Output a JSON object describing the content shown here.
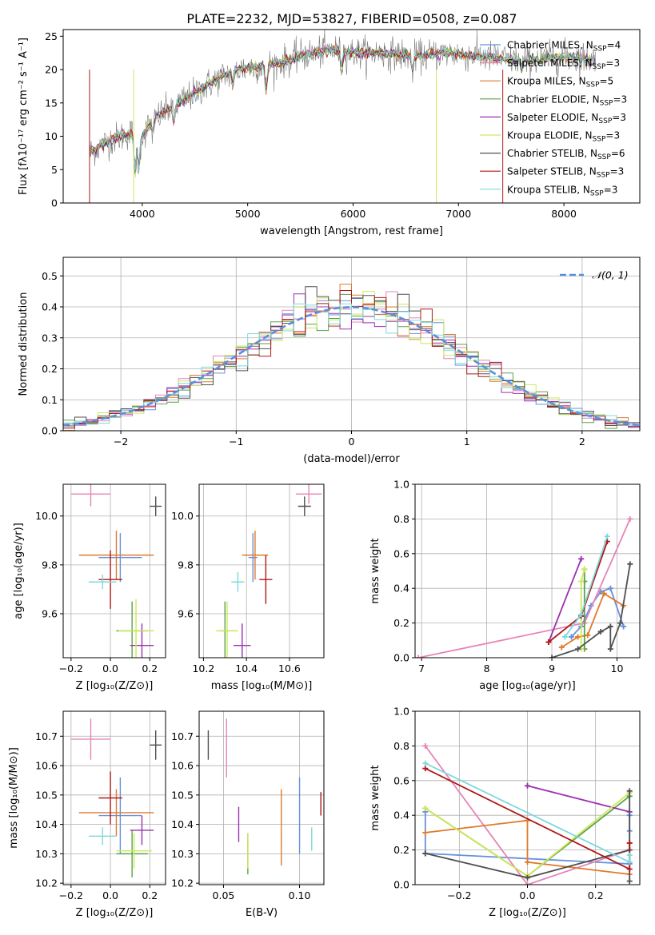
{
  "title": "PLATE=2232, MJD=53827, FIBERID=0508, z=0.087",
  "series": [
    {
      "name": "Chabrier MILES, N",
      "sub": "SSP",
      "suffix": "=4",
      "color": "#6890dc"
    },
    {
      "name": "Salpeter MILES, N",
      "sub": "SSP",
      "suffix": "=3",
      "color": "#e684b8"
    },
    {
      "name": "Kroupa MILES, N",
      "sub": "SSP",
      "suffix": "=5",
      "color": "#e07a2a"
    },
    {
      "name": "Chabrier ELODIE, N",
      "sub": "SSP",
      "suffix": "=3",
      "color": "#5aa24a"
    },
    {
      "name": "Salpeter ELODIE, N",
      "sub": "SSP",
      "suffix": "=3",
      "color": "#9b30b0"
    },
    {
      "name": "Kroupa ELODIE, N",
      "sub": "SSP",
      "suffix": "=3",
      "color": "#cde85a"
    },
    {
      "name": "Chabrier STELIB, N",
      "sub": "SSP",
      "suffix": "=6",
      "color": "#505050"
    },
    {
      "name": "Salpeter STELIB, N",
      "sub": "SSP",
      "suffix": "=3",
      "color": "#b01818"
    },
    {
      "name": "Kroupa STELIB, N",
      "sub": "SSP",
      "suffix": "=3",
      "color": "#7ed8dc"
    }
  ],
  "chart_data": [
    {
      "id": "spectrum",
      "type": "line",
      "xlabel": "wavelength [Angstrom, rest frame]",
      "ylabel": "Flux [fλ10⁻¹⁷ erg cm⁻² s⁻¹ A⁻¹]",
      "xlim": [
        3250,
        8720
      ],
      "ylim": [
        0,
        26
      ],
      "xticks": [
        4000,
        5000,
        6000,
        7000,
        8000
      ],
      "yticks": [
        0,
        5,
        10,
        15,
        20,
        25
      ],
      "grid": false,
      "legend": "right",
      "continuum": [
        [
          3500,
          7.5
        ],
        [
          3700,
          9.5
        ],
        [
          3900,
          10.5
        ],
        [
          4000,
          10
        ],
        [
          4100,
          12.5
        ],
        [
          4300,
          14.5
        ],
        [
          4500,
          16.5
        ],
        [
          4700,
          18.5
        ],
        [
          4900,
          20
        ],
        [
          5100,
          20.5
        ],
        [
          5300,
          21
        ],
        [
          5500,
          22
        ],
        [
          5800,
          23
        ],
        [
          6000,
          22.5
        ],
        [
          6300,
          22.5
        ],
        [
          6600,
          22
        ],
        [
          6900,
          22.5
        ],
        [
          7200,
          22
        ],
        [
          7500,
          21.5
        ],
        [
          7800,
          21.5
        ],
        [
          8000,
          22
        ],
        [
          8300,
          21.5
        ]
      ]
    },
    {
      "id": "residuals",
      "type": "line",
      "xlabel": "(data-model)/error",
      "ylabel": "Normed distribution",
      "xlim": [
        -2.5,
        2.5
      ],
      "ylim": [
        0,
        0.56
      ],
      "xticks": [
        -2,
        -1,
        0,
        1,
        2
      ],
      "yticks": [
        0.0,
        0.1,
        0.2,
        0.3,
        0.4,
        0.5
      ],
      "grid": true,
      "legend": "top-right",
      "reference": {
        "name": "𝒩(0, 1)",
        "mu": 0,
        "sigma": 1,
        "color": "#5a8fdc"
      }
    },
    {
      "id": "age-vs-Z",
      "type": "scatter",
      "xlabel": "Z [log₁₀(Z/Z⊙)]",
      "ylabel": "age  [log₁₀(age/yr)]",
      "xlim": [
        -0.24,
        0.28
      ],
      "ylim": [
        9.42,
        10.13
      ],
      "xticks": [
        -0.2,
        0.0,
        0.2
      ],
      "yticks": [
        9.6,
        9.8,
        10.0
      ],
      "grid": true,
      "points": [
        {
          "s": 0,
          "x": 0.05,
          "y": 9.83,
          "dx": 0.11,
          "dy": 0.1
        },
        {
          "s": 1,
          "x": -0.1,
          "y": 10.09,
          "dx": 0.1,
          "dy": 0.05
        },
        {
          "s": 2,
          "x": 0.03,
          "y": 9.84,
          "dx": 0.19,
          "dy": 0.1
        },
        {
          "s": 3,
          "x": 0.11,
          "y": 9.53,
          "dx": 0.08,
          "dy": 0.12
        },
        {
          "s": 4,
          "x": 0.16,
          "y": 9.47,
          "dx": 0.06,
          "dy": 0.09
        },
        {
          "s": 5,
          "x": 0.13,
          "y": 9.53,
          "dx": 0.09,
          "dy": 0.13
        },
        {
          "s": 6,
          "x": 0.23,
          "y": 10.04,
          "dx": 0.03,
          "dy": 0.04
        },
        {
          "s": 7,
          "x": 0.0,
          "y": 9.74,
          "dx": 0.06,
          "dy": 0.12
        },
        {
          "s": 8,
          "x": -0.04,
          "y": 9.73,
          "dx": 0.07,
          "dy": 0.03
        }
      ]
    },
    {
      "id": "age-vs-mass",
      "type": "scatter",
      "xlabel": "mass [log₁₀(M/M⊙)]",
      "ylabel": "",
      "xlim": [
        10.18,
        10.76
      ],
      "ylim": [
        9.42,
        10.13
      ],
      "xticks": [
        10.2,
        10.4,
        10.6
      ],
      "yticks": [
        9.6,
        9.8,
        10.0
      ],
      "grid": true,
      "points": [
        {
          "s": 0,
          "x": 10.43,
          "y": 9.83,
          "dx": 0.02,
          "dy": 0.1
        },
        {
          "s": 1,
          "x": 10.69,
          "y": 10.09,
          "dx": 0.06,
          "dy": 0.04
        },
        {
          "s": 2,
          "x": 10.44,
          "y": 9.84,
          "dx": 0.06,
          "dy": 0.1
        },
        {
          "s": 3,
          "x": 10.3,
          "y": 9.53,
          "dx": 0.02,
          "dy": 0.12
        },
        {
          "s": 4,
          "x": 10.38,
          "y": 9.47,
          "dx": 0.04,
          "dy": 0.09
        },
        {
          "s": 5,
          "x": 10.31,
          "y": 9.53,
          "dx": 0.05,
          "dy": 0.12
        },
        {
          "s": 6,
          "x": 10.67,
          "y": 10.04,
          "dx": 0.03,
          "dy": 0.04
        },
        {
          "s": 7,
          "x": 10.49,
          "y": 9.74,
          "dx": 0.03,
          "dy": 0.1
        },
        {
          "s": 8,
          "x": 10.36,
          "y": 9.73,
          "dx": 0.03,
          "dy": 0.04
        }
      ]
    },
    {
      "id": "weight-vs-age",
      "type": "line",
      "xlabel": "age  [log₁₀(age/yr)]",
      "ylabel": "mass weight",
      "xlim": [
        6.9,
        10.35
      ],
      "ylim": [
        0,
        1.0
      ],
      "xticks": [
        7,
        8,
        9,
        10
      ],
      "yticks": [
        0.0,
        0.2,
        0.4,
        0.6,
        0.8,
        1.0
      ],
      "grid": true,
      "lines": [
        {
          "s": 0,
          "pts": [
            [
              9.3,
              0.12
            ],
            [
              9.45,
              0.18
            ],
            [
              9.6,
              0.3
            ],
            [
              9.75,
              0.38
            ],
            [
              9.9,
              0.4
            ],
            [
              10.1,
              0.18
            ]
          ]
        },
        {
          "s": 1,
          "pts": [
            [
              6.95,
              0.0
            ],
            [
              9.5,
              0.2
            ],
            [
              10.2,
              0.8
            ]
          ]
        },
        {
          "s": 2,
          "pts": [
            [
              9.15,
              0.06
            ],
            [
              9.4,
              0.12
            ],
            [
              9.55,
              0.13
            ],
            [
              9.8,
              0.37
            ],
            [
              10.1,
              0.3
            ]
          ]
        },
        {
          "s": 3,
          "pts": [
            [
              9.5,
              0.05
            ],
            [
              9.5,
              0.44
            ],
            [
              9.5,
              0.51
            ]
          ]
        },
        {
          "s": 4,
          "pts": [
            [
              8.95,
              0.09
            ],
            [
              9.45,
              0.57
            ]
          ]
        },
        {
          "s": 5,
          "pts": [
            [
              9.45,
              0.05
            ],
            [
              9.45,
              0.44
            ],
            [
              9.5,
              0.51
            ]
          ]
        },
        {
          "s": 6,
          "pts": [
            [
              9.0,
              0.0
            ],
            [
              9.4,
              0.05
            ],
            [
              9.75,
              0.15
            ],
            [
              9.9,
              0.18
            ],
            [
              9.9,
              0.05
            ],
            [
              10.05,
              0.2
            ],
            [
              10.2,
              0.54
            ]
          ]
        },
        {
          "s": 7,
          "pts": [
            [
              8.95,
              0.09
            ],
            [
              9.45,
              0.24
            ],
            [
              9.85,
              0.67
            ]
          ]
        },
        {
          "s": 8,
          "pts": [
            [
              9.2,
              0.12
            ],
            [
              9.45,
              0.25
            ],
            [
              9.85,
              0.7
            ]
          ]
        }
      ]
    },
    {
      "id": "mass-vs-Z",
      "type": "scatter",
      "xlabel": "Z [log₁₀(Z/Z⊙)]",
      "ylabel": "mass [log₁₀(M/M⊙)]",
      "xlim": [
        -0.24,
        0.28
      ],
      "ylim": [
        10.195,
        10.785
      ],
      "xticks": [
        -0.2,
        0.0,
        0.2
      ],
      "yticks": [
        10.2,
        10.3,
        10.4,
        10.5,
        10.6,
        10.7
      ],
      "grid": true,
      "points": [
        {
          "s": 0,
          "x": 0.05,
          "y": 10.43,
          "dx": 0.11,
          "dy": 0.13
        },
        {
          "s": 1,
          "x": -0.1,
          "y": 10.69,
          "dx": 0.1,
          "dy": 0.07
        },
        {
          "s": 2,
          "x": 0.03,
          "y": 10.44,
          "dx": 0.19,
          "dy": 0.08
        },
        {
          "s": 3,
          "x": 0.11,
          "y": 10.3,
          "dx": 0.08,
          "dy": 0.08
        },
        {
          "s": 4,
          "x": 0.16,
          "y": 10.38,
          "dx": 0.06,
          "dy": 0.05
        },
        {
          "s": 5,
          "x": 0.12,
          "y": 10.31,
          "dx": 0.09,
          "dy": 0.06
        },
        {
          "s": 6,
          "x": 0.23,
          "y": 10.67,
          "dx": 0.03,
          "dy": 0.05
        },
        {
          "s": 7,
          "x": 0.0,
          "y": 10.49,
          "dx": 0.06,
          "dy": 0.09
        },
        {
          "s": 8,
          "x": -0.04,
          "y": 10.36,
          "dx": 0.07,
          "dy": 0.03
        }
      ]
    },
    {
      "id": "mass-vs-EBV",
      "type": "scatter",
      "xlabel": "E(B-V)",
      "ylabel": "",
      "xlim": [
        0.034,
        0.116
      ],
      "ylim": [
        10.195,
        10.785
      ],
      "xticks": [
        0.05,
        0.1
      ],
      "yticks": [
        10.2,
        10.3,
        10.4,
        10.5,
        10.6,
        10.7
      ],
      "grid": true,
      "points": [
        {
          "s": 0,
          "x": 0.1,
          "y": 10.43,
          "dx": 0,
          "dy": 0.13
        },
        {
          "s": 1,
          "x": 0.052,
          "y": 10.66,
          "dx": 0,
          "dy": 0.1
        },
        {
          "s": 2,
          "x": 0.088,
          "y": 10.39,
          "dx": 0,
          "dy": 0.13
        },
        {
          "s": 3,
          "x": 0.066,
          "y": 10.3,
          "dx": 0,
          "dy": 0.07
        },
        {
          "s": 4,
          "x": 0.06,
          "y": 10.4,
          "dx": 0,
          "dy": 0.06
        },
        {
          "s": 5,
          "x": 0.066,
          "y": 10.31,
          "dx": 0,
          "dy": 0.06
        },
        {
          "s": 6,
          "x": 0.04,
          "y": 10.67,
          "dx": 0,
          "dy": 0.05
        },
        {
          "s": 7,
          "x": 0.114,
          "y": 10.47,
          "dx": 0,
          "dy": 0.04
        },
        {
          "s": 8,
          "x": 0.108,
          "y": 10.35,
          "dx": 0,
          "dy": 0.04
        }
      ]
    },
    {
      "id": "weight-vs-Z",
      "type": "line",
      "xlabel": "Z [log₁₀(Z/Z⊙)]",
      "ylabel": "mass weight",
      "xlim": [
        -0.33,
        0.33
      ],
      "ylim": [
        0,
        1.0
      ],
      "xticks": [
        -0.2,
        0.0,
        0.2
      ],
      "yticks": [
        0.0,
        0.2,
        0.4,
        0.6,
        0.8,
        1.0
      ],
      "grid": true,
      "lines": [
        {
          "s": 0,
          "pts": [
            [
              -0.3,
              0.42
            ],
            [
              -0.3,
              0.18
            ],
            [
              0.3,
              0.12
            ],
            [
              0.3,
              0.4
            ],
            [
              0.3,
              0.31
            ]
          ]
        },
        {
          "s": 1,
          "pts": [
            [
              -0.3,
              0.8
            ],
            [
              0.0,
              0.0
            ],
            [
              0.3,
              0.2
            ]
          ]
        },
        {
          "s": 2,
          "pts": [
            [
              -0.3,
              0.3
            ],
            [
              0.0,
              0.37
            ],
            [
              0.0,
              0.13
            ],
            [
              0.3,
              0.06
            ]
          ]
        },
        {
          "s": 3,
          "pts": [
            [
              -0.3,
              0.44
            ],
            [
              0.0,
              0.05
            ],
            [
              0.3,
              0.51
            ]
          ]
        },
        {
          "s": 4,
          "pts": [
            [
              0.0,
              0.57
            ],
            [
              0.3,
              0.42
            ]
          ]
        },
        {
          "s": 5,
          "pts": [
            [
              -0.3,
              0.44
            ],
            [
              0.0,
              0.05
            ],
            [
              0.3,
              0.53
            ]
          ]
        },
        {
          "s": 6,
          "pts": [
            [
              -0.3,
              0.18
            ],
            [
              0.0,
              0.04
            ],
            [
              0.3,
              0.2
            ],
            [
              0.3,
              0.54
            ],
            [
              0.3,
              0.02
            ]
          ]
        },
        {
          "s": 7,
          "pts": [
            [
              -0.3,
              0.67
            ],
            [
              0.3,
              0.09
            ],
            [
              0.3,
              0.24
            ]
          ]
        },
        {
          "s": 8,
          "pts": [
            [
              -0.3,
              0.7
            ],
            [
              0.3,
              0.13
            ],
            [
              0.3,
              0.17
            ]
          ]
        }
      ]
    }
  ]
}
